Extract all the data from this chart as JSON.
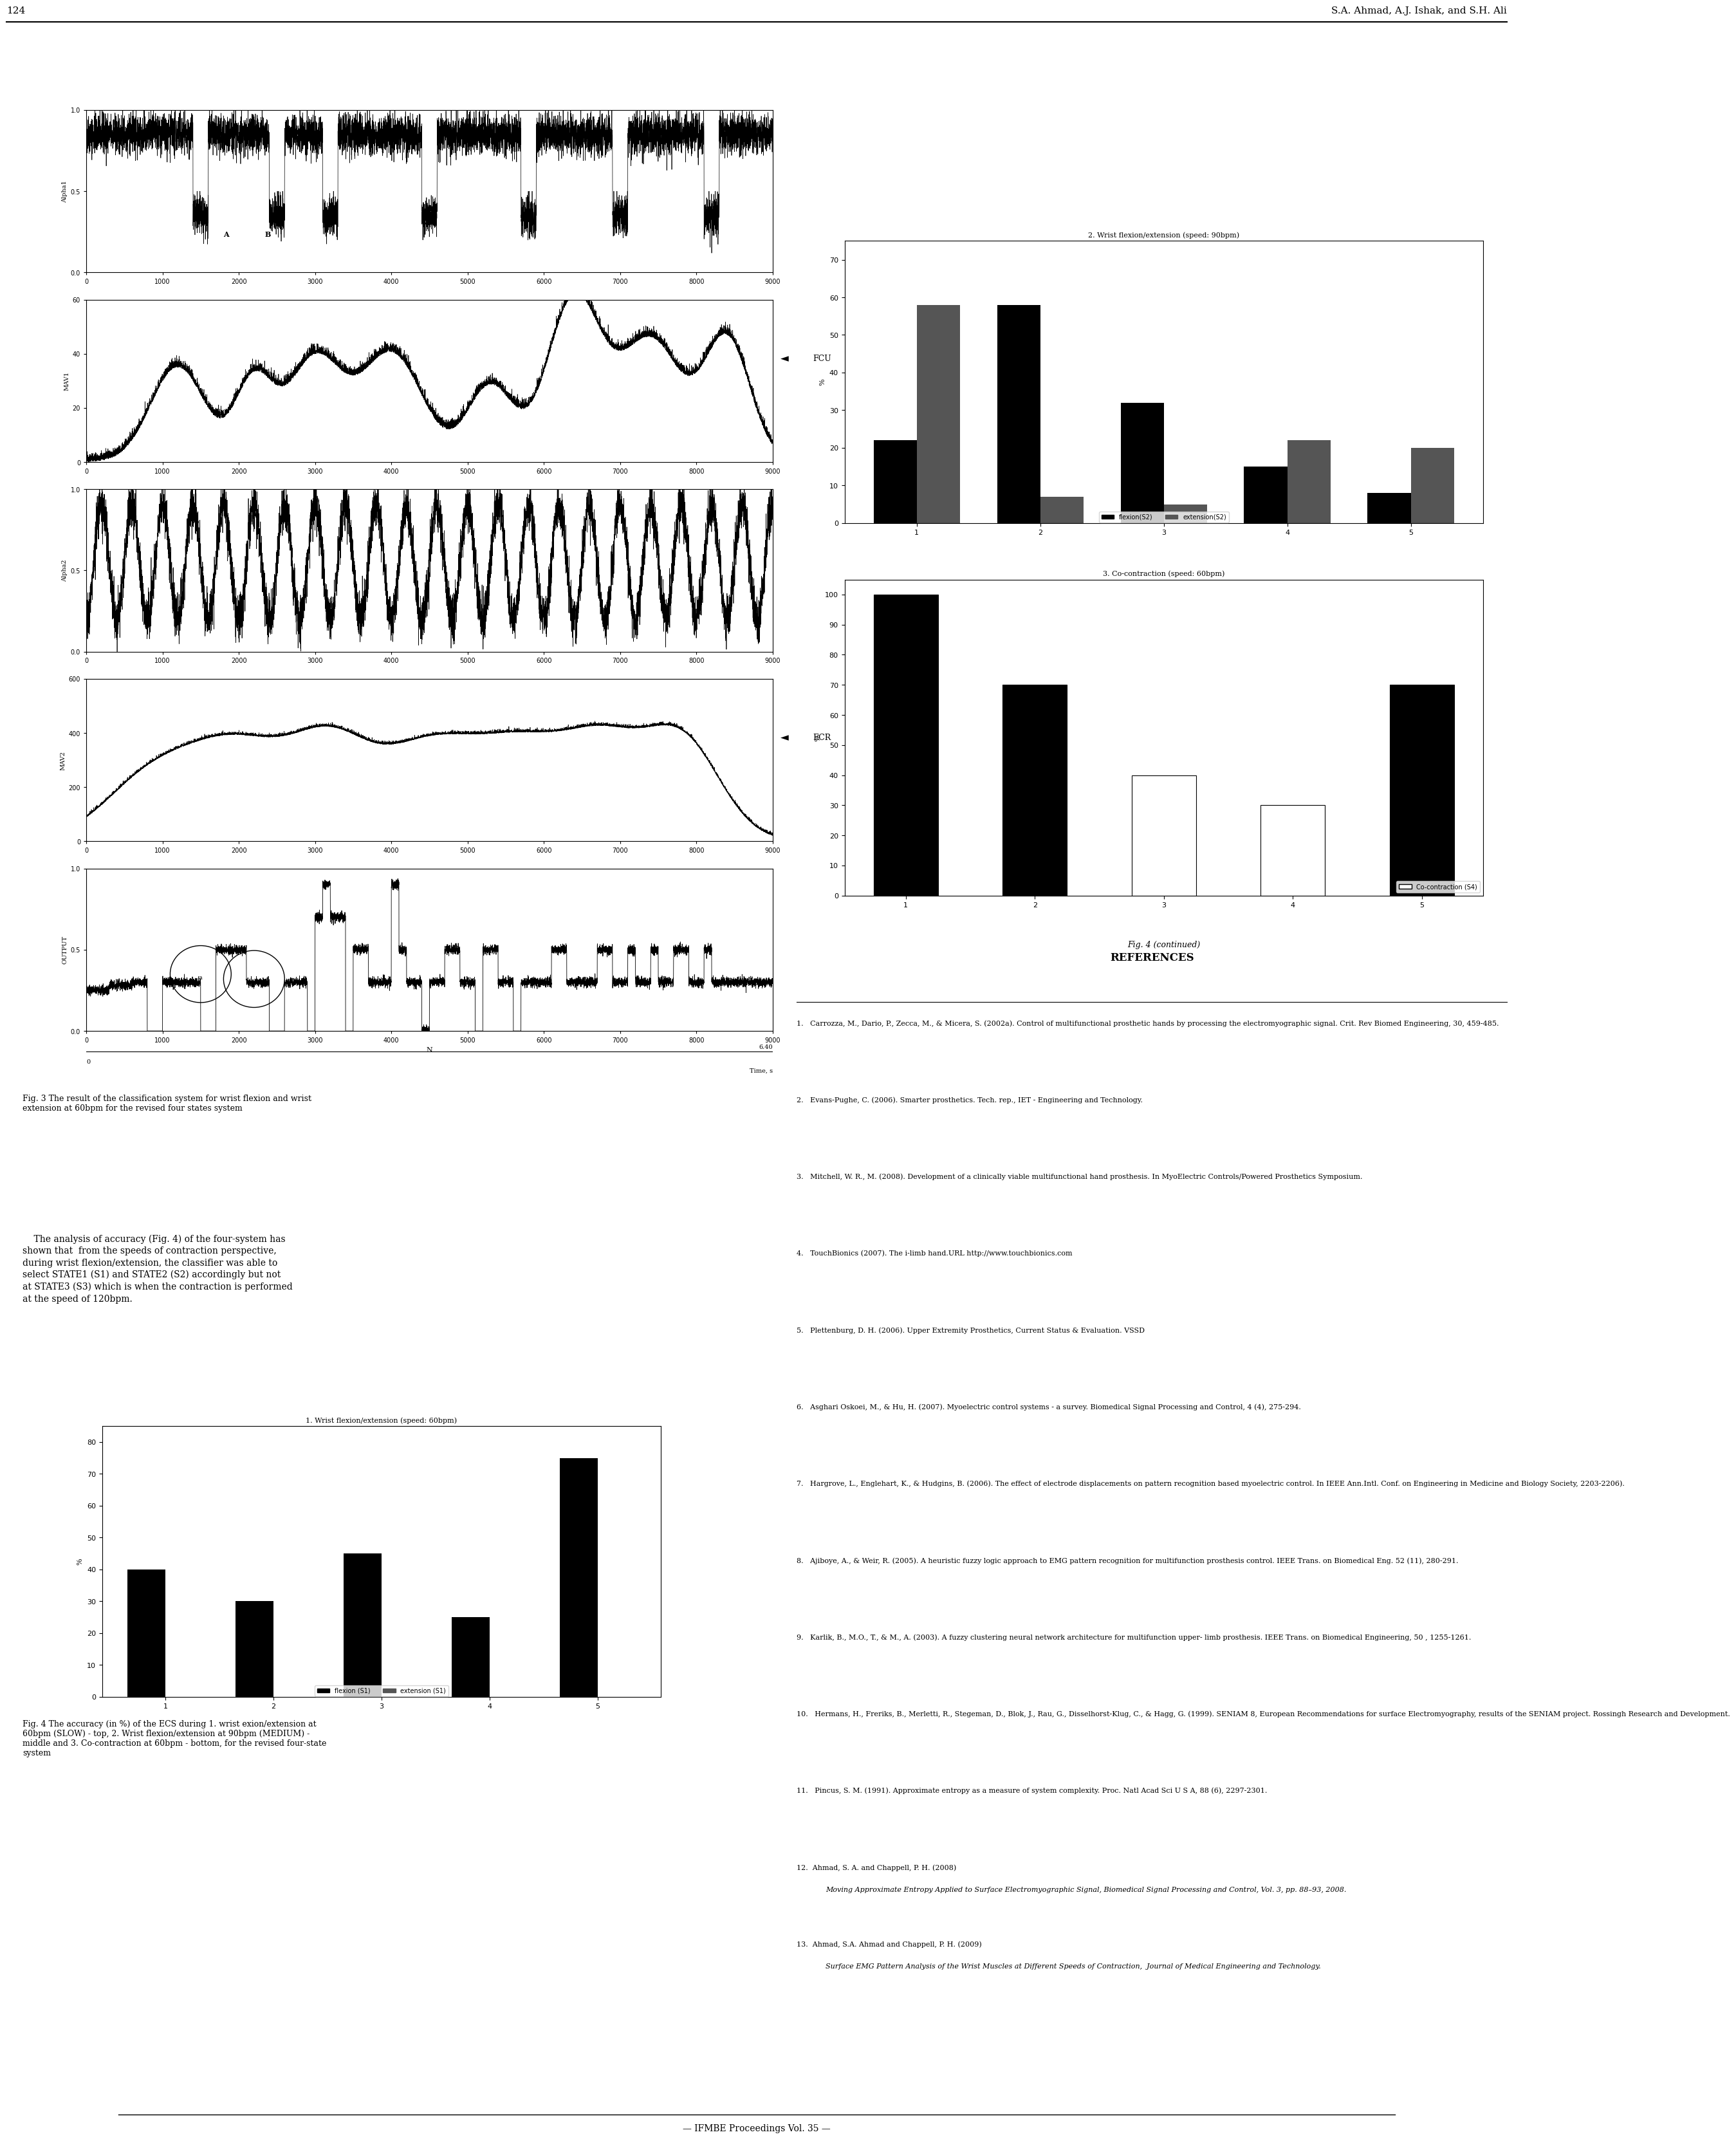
{
  "page_number": "124",
  "header_right": "S.A. Ahmad, A.J. Ishak, and S.H. Ali",
  "fig3_caption": "Fig. 3 The result of the classification system for wrist flexion and wrist\nextension at 60bpm for the revised four states system",
  "fig4_continued_caption": "Fig. 4 (continued)",
  "fcu_label": "FCU",
  "ecr_label": "ECR",
  "subplot1_ylabel": "Alpha1",
  "subplot1_ylim": [
    0,
    1
  ],
  "subplot1_yticks": [
    0,
    0.5,
    1
  ],
  "subplot2_ylabel": "MAV1",
  "subplot2_ylim": [
    0,
    60
  ],
  "subplot2_yticks": [
    0,
    20,
    40,
    60
  ],
  "subplot3_ylabel": "Alpha2",
  "subplot3_ylim": [
    0,
    1
  ],
  "subplot3_yticks": [
    0,
    0.5,
    1
  ],
  "subplot4_ylabel": "MAV2",
  "subplot4_ylim": [
    0,
    600
  ],
  "subplot4_yticks": [
    0,
    200,
    400,
    600
  ],
  "subplot5_ylabel": "OUTPUT",
  "subplot5_ylim": [
    0,
    1
  ],
  "subplot5_yticks": [
    0,
    0.5,
    1
  ],
  "xlim": [
    0,
    9000
  ],
  "xticks": [
    0,
    1000,
    2000,
    3000,
    4000,
    5000,
    6000,
    7000,
    8000,
    9000
  ],
  "xlabel_n": "N",
  "time_label": "Time, s",
  "time_end": "6.40",
  "bar_chart1_title": "2. Wrist flexion/extension (speed: 90bpm)",
  "bar_chart1_categories": [
    1,
    2,
    3,
    4,
    5
  ],
  "bar_chart1_flexion": [
    22,
    58,
    32,
    15,
    8
  ],
  "bar_chart1_extension": [
    58,
    7,
    5,
    22,
    20
  ],
  "bar_chart1_yticks": [
    0,
    10,
    20,
    30,
    40,
    50,
    60,
    70
  ],
  "bar_chart1_ylim": [
    0,
    75
  ],
  "bar_chart1_ylabel": "%",
  "bar_chart1_legend_flex": "flexion(S2)",
  "bar_chart1_legend_ext": "extension(S2)",
  "bar_chart2_title": "3. Co-contraction (speed: 60bpm)",
  "bar_chart2_categories": [
    1,
    2,
    3,
    4,
    5
  ],
  "bar_chart2_values": [
    100,
    70,
    40,
    30,
    70
  ],
  "bar_chart2_yticks": [
    0,
    10,
    20,
    30,
    40,
    50,
    60,
    70,
    80,
    90,
    100
  ],
  "bar_chart2_ylim": [
    0,
    105
  ],
  "bar_chart2_ylabel": "%",
  "bar_chart2_legend": "Co-contraction (S4)",
  "lower_bar_title": "1. Wrist flexion/extension (speed: 60bpm)",
  "lower_bar_categories": [
    1,
    2,
    3,
    4,
    5
  ],
  "lower_bar_flexion": [
    40,
    30,
    45,
    25,
    75
  ],
  "lower_bar_extension": [
    0,
    0,
    0,
    0,
    0
  ],
  "lower_bar_yticks": [
    0,
    10,
    20,
    30,
    40,
    50,
    60,
    70,
    80
  ],
  "lower_bar_ylim": [
    0,
    85
  ],
  "lower_bar_ylabel": "%",
  "lower_bar_legend_flex": "flexion (S1)",
  "lower_bar_legend_ext": "extension (S1)",
  "fig4_accuracy_caption_line1": "Fig. 4 The accuracy (in %) of the ECS during 1. wrist exion/extension at",
  "fig4_accuracy_caption_line2": "60bpm (SLOW) - top, 2. Wrist flexion/extension at 90bpm (MEDIUM) -",
  "fig4_accuracy_caption_line3": "middle and 3. Co-contraction at 60bpm - bottom, for the revised four-state",
  "fig4_accuracy_caption_line4": "system",
  "references_title": "REFERENCES",
  "ref1": "Carrozza, M., Dario, P., Zecca, M., & Micera, S. (2002a). Control of multifunctional prosthetic hands by processing the electromyographic signal. Crit. Rev Biomed Engineering, 30, 459-485.",
  "ref2": "Evans-Pughe, C. (2006). Smarter prosthetics. Tech. rep., IET - Engineering and Technology.",
  "ref3": "Mitchell, W. R., M. (2008). Development of a clinically viable multifunctional hand prosthesis. In MyoElectric Controls/Powered Prosthetics Symposium.",
  "ref4": "TouchBionics (2007). The i-limb hand.URL http://www.touchbionics.com",
  "ref5": "Plettenburg, D. H. (2006). Upper Extremity Prosthetics, Current Status & Evaluation. VSSD",
  "ref6": "Asghari Oskoei, M., & Hu, H. (2007). Myoelectric control systems - a survey. Biomedical Signal Processing and Control, 4 (4), 275-294.",
  "ref7": "Hargrove, L., Englehart, K., & Hudgins, B. (2006). The effect of electrode displacements on pattern recognition based myoelectric control. In IEEE Ann.Intl. Conf. on Engineering in Medicine and Biology Society, 2203-2206).",
  "ref8": "Ajiboye, A., & Weir, R. (2005). A heuristic fuzzy logic approach to EMG pattern recognition for multifunction prosthesis control. IEEE Trans. on Biomedical Eng. 52 (11), 280-291.",
  "ref9": "Karlik, B., M.O., T., & M., A. (2003). A fuzzy clustering neural network architecture for multifunction upper- limb prosthesis. IEEE Trans. on Biomedical Engineering, 50 , 1255-1261.",
  "ref10": "Hermans, H., Freriks, B., Merletti, R., Stegeman, D., Blok, J., Rau, G., Disselhorst-Klug, C., & Hagg, G. (1999). SENIAM 8, European Recommendations for surface Electromyography, results of the SENIAM project. Rossingh Research and Development.",
  "ref11": "Pincus, S. M. (1991). Approximate entropy as a measure of system complexity. Proc. Natl Acad Sci U S A, 88 (6), 2297-2301.",
  "ref12_normal": "Ahmad, S. A. and Chappell, P. H. (2008) ",
  "ref12_italic": "Moving Approximate Entropy Applied to Surface Electromyographic Signal",
  "ref12_end": ", Biomedical Signal Processing and Control, Vol. 3, pp. 88–93, 2008.",
  "ref13_normal": "Ahmad, S.A. Ahmad and Chappell, P. H. (2009) ",
  "ref13_italic": "Surface EMG Pattern Analysis of the Wrist Muscles at Different Speeds of Contraction",
  "ref13_end": ",  Journal of Medical Engineering and Technology.",
  "body_text_line1": "    The analysis of accuracy (Fig. 4) of the four-system has",
  "body_text_line2": "shown that  from the speeds of contraction perspective,",
  "body_text_line3": "during wrist flexion/extension, the classifier was able to",
  "body_text_line4": "select STATE1 (S1) and STATE2 (S2) accordingly but not",
  "body_text_line5": "at STATE3 (S3) which is when the contraction is performed",
  "body_text_line6": "at the speed of 120bpm.",
  "footer": "IFMBE Proceedings Vol. 35",
  "background_color": "#ffffff",
  "text_color": "#000000",
  "signal_color": "#000000",
  "bar_color_black": "#000000",
  "bar_color_white": "#ffffff"
}
